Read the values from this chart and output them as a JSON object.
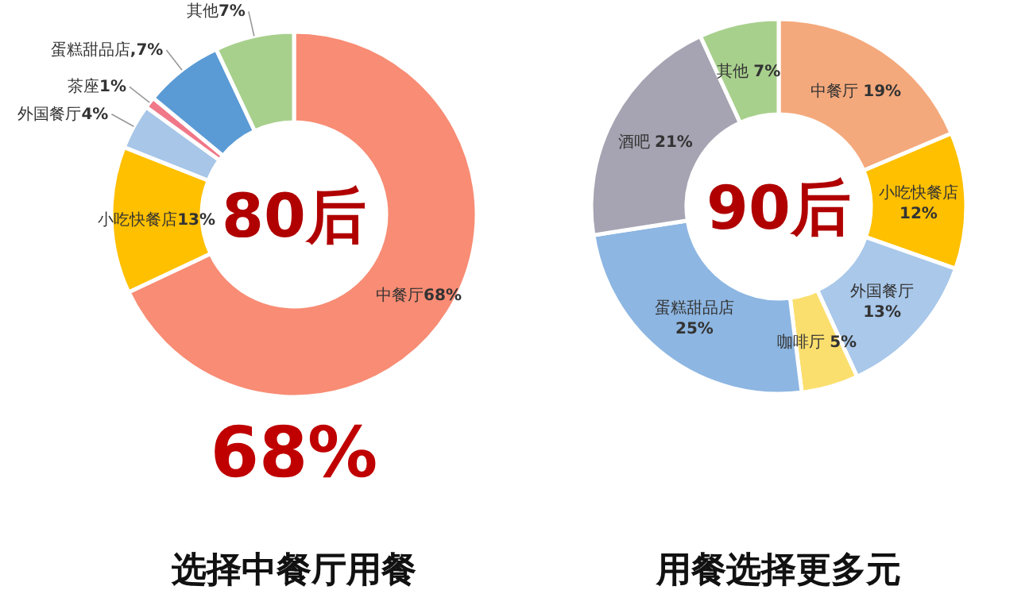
{
  "chart_data": [
    {
      "type": "donut",
      "title": "80后",
      "categories": [
        "中餐厅",
        "小吃快餐店",
        "外国餐厅",
        "茶座",
        "蛋糕甜品店",
        "其他"
      ],
      "values": [
        68,
        13,
        4,
        1,
        7,
        7
      ],
      "value_labels": [
        "68%",
        "13%",
        "4%",
        "1%",
        ",7%",
        "7%"
      ],
      "colors": [
        "#f88c74",
        "#ffc000",
        "#a7c6e8",
        "#f07888",
        "#5b9bd5",
        "#a8d08d"
      ],
      "annotations": [
        "68%",
        "选择中餐厅用餐"
      ]
    },
    {
      "type": "donut",
      "title": "90后",
      "categories": [
        "中餐厅",
        "小吃快餐店",
        "外国餐厅",
        "咖啡厅",
        "蛋糕甜品店",
        "酒吧",
        "其他"
      ],
      "values": [
        19,
        12,
        13,
        5,
        25,
        21,
        7
      ],
      "value_labels": [
        "19%",
        "12%",
        "13%",
        "5%",
        "25%",
        "21%",
        "7%"
      ],
      "colors": [
        "#f4a97c",
        "#ffc000",
        "#a9c8ea",
        "#fbdf6e",
        "#8db6e2",
        "#a6a4b2",
        "#a8d08d"
      ],
      "annotations": [
        "用餐选择更多元"
      ]
    }
  ]
}
